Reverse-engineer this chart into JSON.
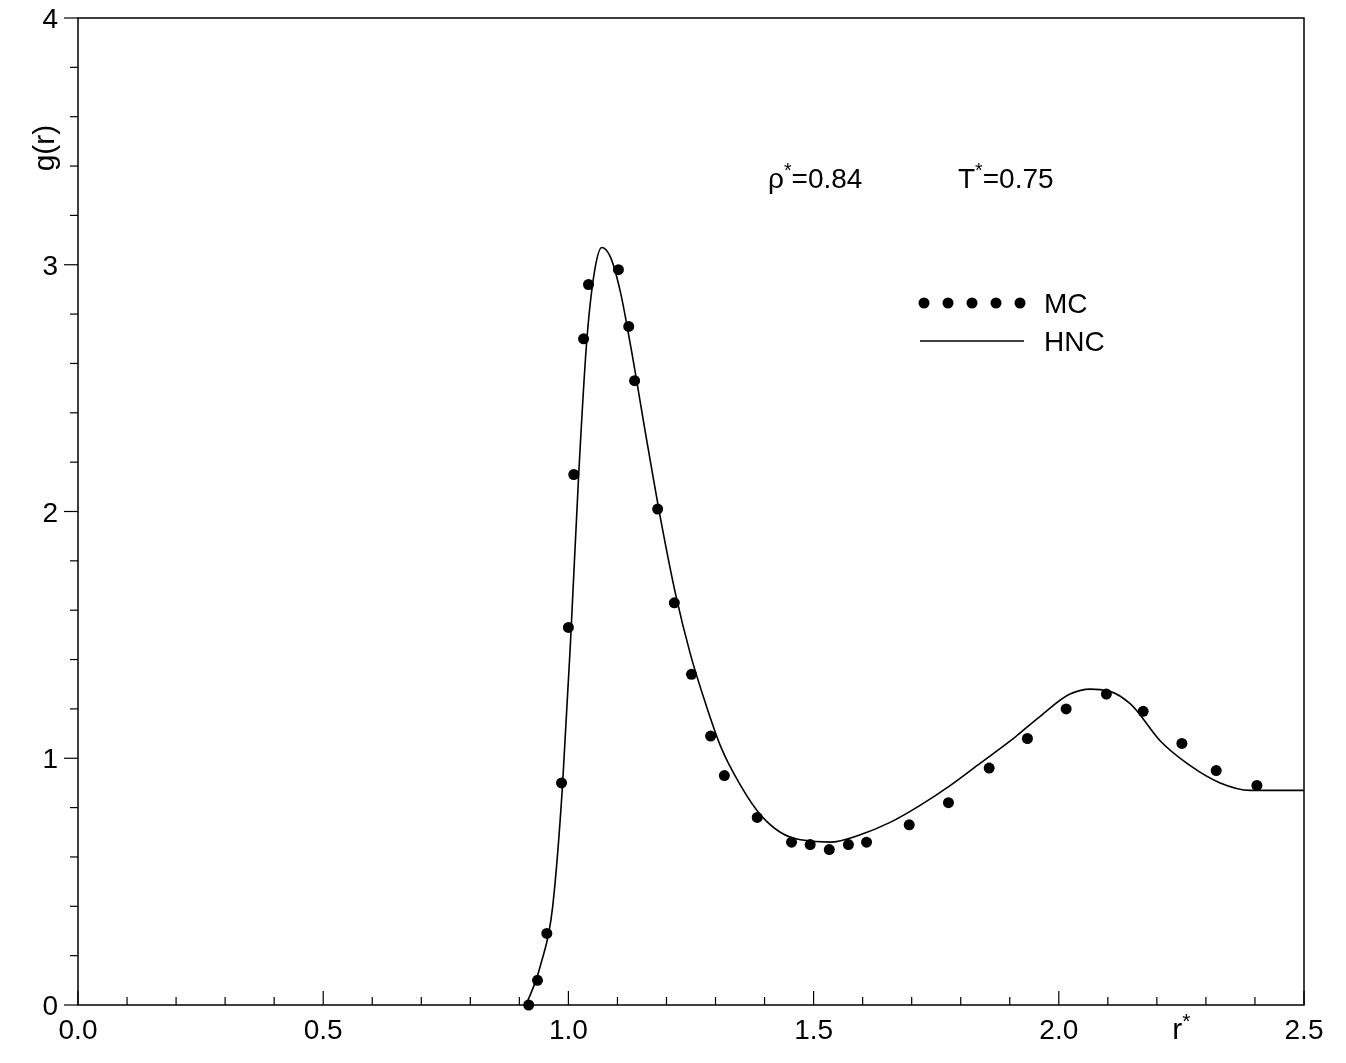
{
  "chart_data": {
    "type": "line",
    "xlabel": "r$^{*}$",
    "ylabel": "g(r)",
    "annotations": [
      "ρ$^{*}$=0.84",
      "T$^{*}$=0.75"
    ],
    "xlim": [
      0,
      2.5
    ],
    "ylim": [
      0,
      4
    ],
    "xticks": [
      {
        "value": 0,
        "label": "0.0"
      },
      {
        "value": 0.1,
        "label": null
      },
      {
        "value": 0.2,
        "label": null
      },
      {
        "value": 0.3,
        "label": null
      },
      {
        "value": 0.4,
        "label": null
      },
      {
        "value": 0.5,
        "label": "0.5"
      },
      {
        "value": 0.6,
        "label": null
      },
      {
        "value": 0.7,
        "label": null
      },
      {
        "value": 0.8,
        "label": null
      },
      {
        "value": 0.9,
        "label": null
      },
      {
        "value": 1,
        "label": "1.0"
      },
      {
        "value": 1.1,
        "label": null
      },
      {
        "value": 1.2,
        "label": null
      },
      {
        "value": 1.3,
        "label": null
      },
      {
        "value": 1.4,
        "label": null
      },
      {
        "value": 1.5,
        "label": "1.5"
      },
      {
        "value": 1.6,
        "label": null
      },
      {
        "value": 1.7,
        "label": null
      },
      {
        "value": 1.8,
        "label": null
      },
      {
        "value": 1.9,
        "label": null
      },
      {
        "value": 2,
        "label": "2.0"
      },
      {
        "value": 2.1,
        "label": null
      },
      {
        "value": 2.2,
        "label": null
      },
      {
        "value": 2.3,
        "label": null
      },
      {
        "value": 2.4,
        "label": null
      },
      {
        "value": 2.5,
        "label": "2.5"
      }
    ],
    "yticks": [
      0,
      {
        "value": 0.2,
        "label": null
      },
      {
        "value": 0.4,
        "label": null
      },
      {
        "value": 0.6,
        "label": null
      },
      {
        "value": 0.8,
        "label": null
      },
      1,
      {
        "value": 1.2,
        "label": null
      },
      {
        "value": 1.4,
        "label": null
      },
      {
        "value": 1.6,
        "label": null
      },
      {
        "value": 1.8,
        "label": null
      },
      2,
      {
        "value": 2.2,
        "label": null
      },
      {
        "value": 2.4,
        "label": null
      },
      {
        "value": 2.6,
        "label": null
      },
      {
        "value": 2.8,
        "label": null
      },
      3,
      {
        "value": 3.2,
        "label": null
      },
      {
        "value": 3.4,
        "label": null
      },
      {
        "value": 3.6,
        "label": null
      },
      {
        "value": 3.8,
        "label": null
      },
      4
    ],
    "grid": false,
    "legend": "top right",
    "series": [
      {
        "name": "MC",
        "type": "scatter",
        "marker": "circle",
        "color": "#000000",
        "x": [
          0.919,
          0.937,
          0.956,
          0.986,
          1.0,
          1.011,
          1.031,
          1.041,
          1.102,
          1.123,
          1.135,
          1.182,
          1.216,
          1.251,
          1.29,
          1.318,
          1.385,
          1.455,
          1.493,
          1.532,
          1.571,
          1.608,
          1.695,
          1.775,
          1.858,
          1.936,
          2.015,
          2.097,
          2.172,
          2.251,
          2.321,
          2.404
        ],
        "values": [
          0,
          0.1,
          0.29,
          0.9,
          1.53,
          2.15,
          2.7,
          2.92,
          2.98,
          2.75,
          2.53,
          2.01,
          1.63,
          1.34,
          1.09,
          0.93,
          0.76,
          0.66,
          0.65,
          0.63,
          0.65,
          0.66,
          0.73,
          0.82,
          0.96,
          1.08,
          1.2,
          1.26,
          1.19,
          1.06,
          0.95,
          0.89
        ]
      },
      {
        "name": "HNC",
        "marker": "none",
        "line_style": "solid",
        "color": "#000000",
        "x": [
          0.913,
          0.943,
          0.968,
          0.988,
          1.004,
          1.021,
          1.037,
          1.053,
          1.068,
          1.086,
          1.106,
          1.127,
          1.157,
          1.188,
          1.218,
          1.249,
          1.28,
          1.31,
          1.351,
          1.392,
          1.432,
          1.473,
          1.534,
          1.595,
          1.656,
          1.718,
          1.779,
          1.84,
          1.901,
          1.962,
          2.023,
          2.064,
          2.105,
          2.146,
          2.207,
          2.268,
          2.329,
          2.39,
          2.451,
          2.5
        ],
        "values": [
          0,
          0.16,
          0.4,
          0.89,
          1.46,
          2.15,
          2.68,
          2.97,
          3.07,
          3.03,
          2.89,
          2.67,
          2.32,
          1.97,
          1.67,
          1.42,
          1.22,
          1.05,
          0.89,
          0.77,
          0.7,
          0.67,
          0.66,
          0.69,
          0.74,
          0.81,
          0.89,
          0.98,
          1.07,
          1.17,
          1.26,
          1.28,
          1.27,
          1.22,
          1.07,
          0.97,
          0.9,
          0.87,
          0.87,
          0.87
        ]
      }
    ]
  }
}
